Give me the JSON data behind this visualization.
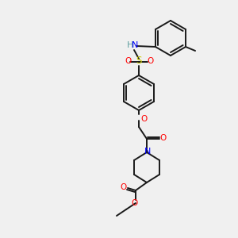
{
  "bg": "#f0f0f0",
  "bond_color": "#1a1a1a",
  "bond_lw": 1.4,
  "atom_colors": {
    "N": "#0000ff",
    "O": "#ff0000",
    "S": "#cccc00",
    "H": "#5f9ea0"
  },
  "font_size": 7.5
}
